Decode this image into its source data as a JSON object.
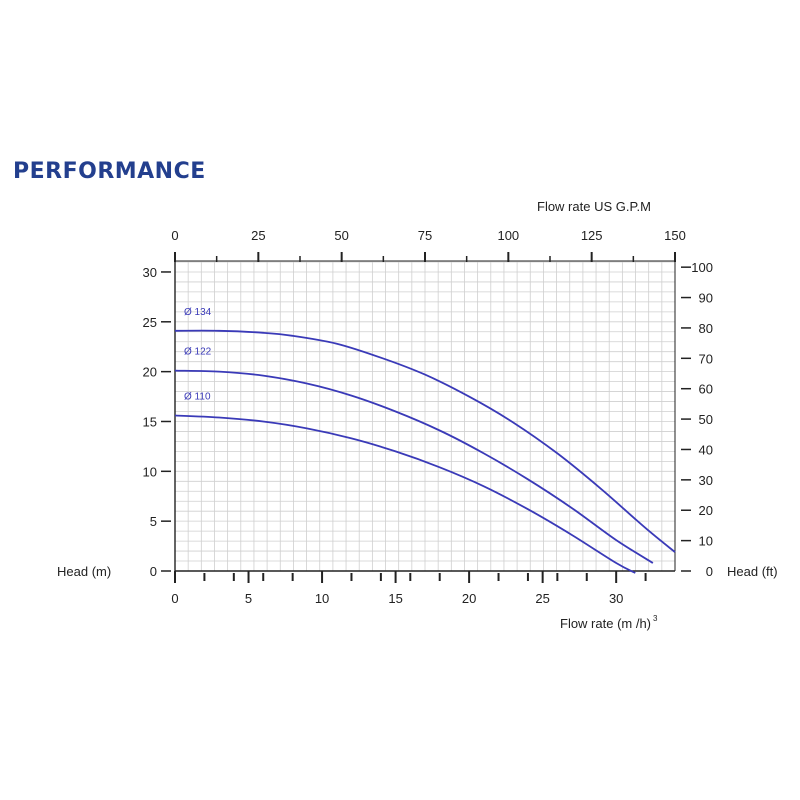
{
  "page": {
    "title": "PERFORMANCE"
  },
  "chart_data": {
    "type": "line",
    "title": "PERFORMANCE",
    "xlabel": "Flow rate (m /h)",
    "xlabel_superscript": "3",
    "ylabel": "Head (m)",
    "x2label": "Flow rate US  G.P.M",
    "y2label": "Head (ft)",
    "xlim": [
      0,
      34
    ],
    "ylim": [
      0,
      31
    ],
    "x2lim": [
      0,
      150
    ],
    "y2lim": [
      0,
      101.7
    ],
    "grid": true,
    "xticks": [
      0,
      5,
      10,
      15,
      20,
      25,
      30
    ],
    "yticks": [
      0,
      5,
      10,
      15,
      20,
      25,
      30
    ],
    "x2ticks": [
      0,
      25,
      50,
      75,
      100,
      125,
      150
    ],
    "y2ticks": [
      0,
      10,
      20,
      30,
      40,
      50,
      60,
      70,
      80,
      90,
      100
    ],
    "x_minor_ticks": [
      2,
      4,
      6,
      8,
      12,
      14,
      16,
      18,
      22,
      24,
      26,
      28,
      32
    ],
    "x2_minor_ticks": [
      12.5,
      37.5,
      62.5,
      87.5,
      112.5,
      137.5
    ],
    "line_color": "#3a3ab8",
    "grid_color": "#cfcfcf",
    "series": [
      {
        "name": "Ø 134",
        "x": [
          0,
          3,
          6,
          8,
          11,
          14,
          17,
          20,
          23,
          26,
          29,
          32,
          34
        ],
        "y": [
          24.1,
          24.1,
          23.9,
          23.6,
          22.8,
          21.4,
          19.7,
          17.5,
          14.9,
          11.8,
          8.2,
          4.3,
          1.9
        ]
      },
      {
        "name": "Ø 122",
        "x": [
          0,
          3,
          6,
          9,
          12,
          15,
          18,
          21,
          24,
          27,
          30,
          32.5
        ],
        "y": [
          20.1,
          20.0,
          19.6,
          18.8,
          17.6,
          16.0,
          14.1,
          11.8,
          9.2,
          6.3,
          3.1,
          0.8
        ]
      },
      {
        "name": "Ø 110",
        "x": [
          0,
          3,
          6,
          9,
          12,
          15,
          18,
          21,
          24,
          27,
          30,
          31.3
        ],
        "y": [
          15.6,
          15.4,
          15.0,
          14.3,
          13.3,
          12.0,
          10.4,
          8.5,
          6.2,
          3.6,
          0.8,
          -0.2
        ]
      }
    ]
  }
}
